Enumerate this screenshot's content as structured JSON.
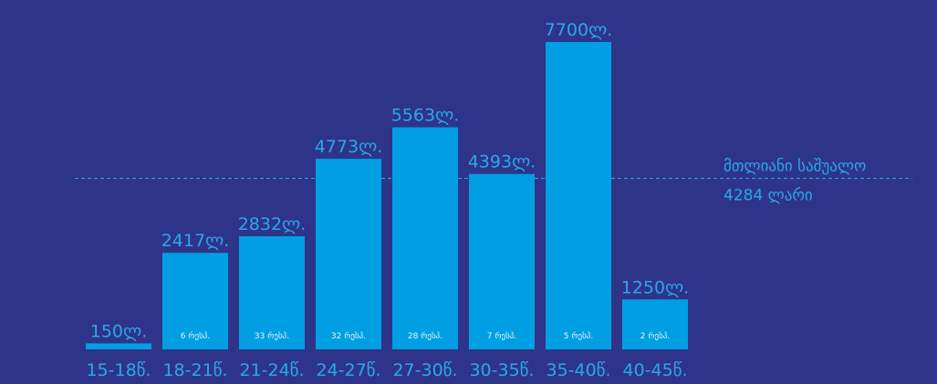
{
  "colors": {
    "background": "#2e348a",
    "bar": "#009fe3",
    "text": "#2aa8e6",
    "count_text": "#ffffff",
    "average_line": "#2aa8e6"
  },
  "chart_data": {
    "type": "bar",
    "categories": [
      "15-18წ.",
      "18-21წ.",
      "21-24წ.",
      "24-27წ.",
      "27-30წ.",
      "30-35წ.",
      "35-40წ.",
      "40-45წ."
    ],
    "values": [
      150,
      2417,
      2832,
      4773,
      5563,
      4393,
      7700,
      1250
    ],
    "value_labels": [
      "150ლ.",
      "2417ლ.",
      "2832ლ.",
      "4773ლ.",
      "5563ლ.",
      "4393ლ.",
      "7700ლ.",
      "1250ლ."
    ],
    "count_labels": [
      "",
      "6 რესპ.",
      "33 რესპ.",
      "32 რესპ.",
      "28 რესპ.",
      "7 რესპ.",
      "5 რესპ.",
      "2 რესპ."
    ],
    "ylim": [
      0,
      7700
    ],
    "grid": false,
    "legend": "none",
    "average": {
      "value": 4284,
      "label_line1": "მთლიანი საშუალო",
      "label_line2": "4284 ლარი"
    }
  }
}
